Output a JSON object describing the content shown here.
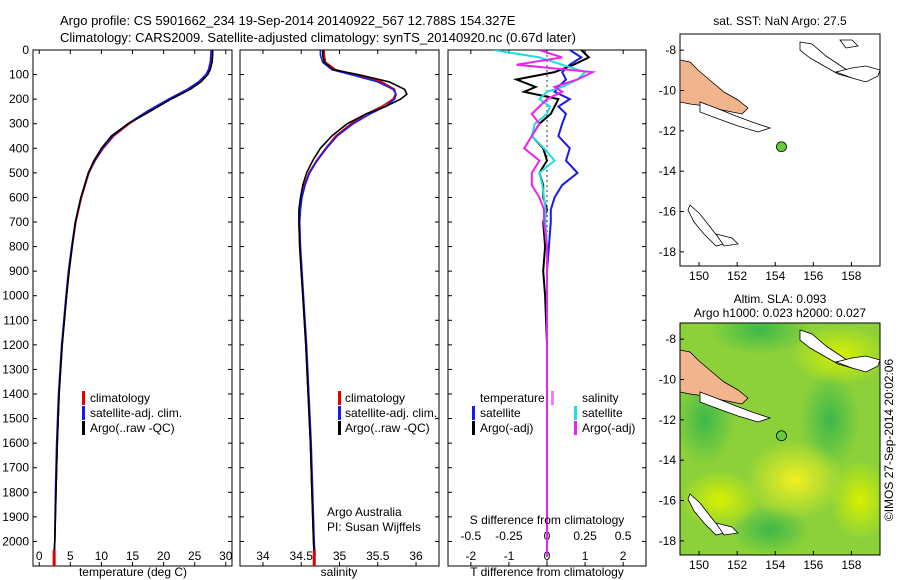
{
  "header": {
    "line1": "Argo profile: CS 5901662_234 19-Sep-2014 20140922_567 12.788S 154.327E",
    "line2": "Climatology: CARS2009. Satellite-adjusted climatology: synTS_20140920.nc (0.67d later)"
  },
  "colors": {
    "climatology": "#e00000",
    "satellite": "#1a1aee",
    "argo": "#000000",
    "salinity_satellite": "#22dddd",
    "salinity_argo": "#ee22ee",
    "land": "#f2b48c",
    "argo_marker": "#66cc33"
  },
  "chart_data": [
    {
      "type": "line",
      "name": "temperature-panel",
      "xlabel": "temperature (deg C)",
      "ylabel": "",
      "xlim": [
        -1,
        31
      ],
      "ylim": [
        2100,
        0
      ],
      "xticks": [
        0,
        5,
        10,
        15,
        20,
        25,
        30
      ],
      "yticks": [
        0,
        100,
        200,
        300,
        400,
        500,
        600,
        700,
        800,
        900,
        1000,
        1100,
        1200,
        1300,
        1400,
        1500,
        1600,
        1700,
        1800,
        1900,
        2000
      ],
      "depth": [
        0,
        20,
        50,
        80,
        100,
        130,
        160,
        200,
        250,
        300,
        350,
        400,
        450,
        500,
        600,
        700,
        800,
        900,
        1000,
        1200,
        1400,
        1600,
        1800,
        2000,
        2060
      ],
      "legend": [
        "climatology",
        "satellite-adj. clim.",
        "Argo(..raw -QC)"
      ],
      "series": [
        {
          "name": "climatology",
          "values": [
            27.8,
            27.8,
            27.7,
            27.4,
            27.0,
            25.8,
            24.0,
            21.0,
            17.5,
            14.5,
            12.0,
            10.3,
            9.0,
            8.0,
            6.8,
            5.9,
            5.3,
            4.8,
            4.4,
            3.7,
            3.2,
            2.9,
            2.7,
            2.5,
            2.4
          ]
        },
        {
          "name": "satellite-adj. clim.",
          "values": [
            27.6,
            27.6,
            27.5,
            27.2,
            26.8,
            25.6,
            23.8,
            20.8,
            17.3,
            14.3,
            11.8,
            10.2,
            8.9,
            7.9,
            6.7,
            5.8,
            5.2,
            4.7,
            4.3,
            3.6,
            3.1,
            2.8,
            2.6,
            2.5,
            2.4
          ]
        },
        {
          "name": "Argo(..raw -QC)",
          "values": [
            27.9,
            27.9,
            27.8,
            27.5,
            27.1,
            26.0,
            24.3,
            21.2,
            17.8,
            14.3,
            11.6,
            10.0,
            8.8,
            7.9,
            6.7,
            5.8,
            5.3,
            4.8,
            4.4,
            3.7,
            3.2,
            2.9,
            2.7,
            2.5,
            2.4
          ]
        }
      ]
    },
    {
      "type": "line",
      "name": "salinity-panel",
      "xlabel": "salinity",
      "xlim": [
        33.7,
        36.3
      ],
      "ylim": [
        2100,
        0
      ],
      "xticks": [
        34,
        34.5,
        35,
        35.5,
        36
      ],
      "depth": [
        0,
        20,
        50,
        80,
        100,
        130,
        160,
        180,
        200,
        230,
        260,
        300,
        350,
        400,
        450,
        500,
        550,
        600,
        650,
        700,
        800,
        900,
        1000,
        1200,
        1400,
        1600,
        1800,
        2000,
        2060
      ],
      "legend": [
        "climatology",
        "satellite-adj. clim.",
        "Argo(..raw -QC)"
      ],
      "annotations": [
        "Argo Australia",
        "PI: Susan Wijffels"
      ],
      "series": [
        {
          "name": "climatology",
          "values": [
            34.8,
            34.8,
            34.82,
            34.95,
            35.2,
            35.55,
            35.72,
            35.73,
            35.7,
            35.55,
            35.35,
            35.15,
            34.95,
            34.82,
            34.7,
            34.6,
            34.54,
            34.5,
            34.48,
            34.47,
            34.48,
            34.5,
            34.52,
            34.56,
            34.59,
            34.62,
            34.64,
            34.66,
            34.67
          ]
        },
        {
          "name": "satellite-adj. clim.",
          "values": [
            34.75,
            34.75,
            34.78,
            34.9,
            35.15,
            35.5,
            35.7,
            35.74,
            35.72,
            35.6,
            35.4,
            35.18,
            34.97,
            34.83,
            34.71,
            34.61,
            34.55,
            34.51,
            34.49,
            34.48,
            34.49,
            34.51,
            34.53,
            34.57,
            34.6,
            34.63,
            34.65,
            34.67,
            34.68
          ]
        },
        {
          "name": "Argo(..raw -QC)",
          "values": [
            34.78,
            34.78,
            34.8,
            34.92,
            35.25,
            35.65,
            35.85,
            35.88,
            35.8,
            35.6,
            35.35,
            35.1,
            34.9,
            34.75,
            34.65,
            34.57,
            34.52,
            34.49,
            34.47,
            34.47,
            34.48,
            34.5,
            34.52,
            34.56,
            34.59,
            34.62,
            34.64,
            34.66,
            34.67
          ]
        }
      ]
    },
    {
      "type": "line",
      "name": "difference-panel",
      "xlabel": "T difference from climatology",
      "xlabel_top": "S difference from climatology",
      "xlim": [
        -2.6,
        2.6
      ],
      "ylim": [
        2100,
        0
      ],
      "xticks": [
        -2,
        -1,
        0,
        1,
        2
      ],
      "xticks_s": [
        "-0.5",
        "-0.25",
        "0",
        "0.25",
        "0.5"
      ],
      "legend_t_title": "temperature",
      "legend_s_title": "salinity",
      "legend_t": [
        "satellite",
        "Argo(-adj)"
      ],
      "legend_s": [
        "satellite",
        "Argo(-adj)"
      ],
      "depth": [
        0,
        30,
        60,
        90,
        120,
        150,
        170,
        200,
        230,
        260,
        300,
        350,
        400,
        450,
        500,
        550,
        600,
        650,
        700,
        800,
        900,
        1000,
        1200,
        1400,
        1600,
        1800,
        2000,
        2060
      ],
      "series": [
        {
          "name": "temperature satellite",
          "values": [
            0.6,
            0.9,
            0.6,
            0.4,
            0.5,
            0.3,
            0.2,
            0.6,
            0.3,
            0.5,
            0.4,
            0.3,
            0.6,
            0.5,
            0.8,
            0.4,
            0.2,
            0.1,
            0.1,
            0.05,
            0.0,
            0.0,
            0.0,
            0.0,
            0.0,
            0.0,
            0.0,
            0.0
          ]
        },
        {
          "name": "temperature Argo(-adj)",
          "values": [
            0.9,
            1.1,
            0.7,
            0.2,
            -0.8,
            -0.3,
            -0.6,
            0.3,
            0.2,
            0.1,
            -0.2,
            -0.4,
            -0.1,
            0.0,
            -0.2,
            -0.1,
            -0.1,
            0.0,
            -0.1,
            -0.05,
            -0.1,
            -0.05,
            0.0,
            0.0,
            0.0,
            0.0,
            0.0,
            0.0
          ]
        },
        {
          "name": "salinity satellite",
          "values": [
            -0.35,
            -0.05,
            0.1,
            0.25,
            0.2,
            0.1,
            0.0,
            -0.05,
            0.02,
            0.0,
            -0.08,
            -0.1,
            -0.02,
            0.05,
            -0.05,
            -0.03,
            -0.02,
            -0.01,
            -0.01,
            0.0,
            0.0,
            0.0,
            0.0,
            0.0,
            0.0,
            0.0,
            0.0,
            0.0
          ]
        },
        {
          "name": "salinity Argo(-adj)",
          "values": [
            -0.05,
            0.1,
            -0.2,
            0.3,
            0.2,
            0.05,
            0.1,
            0.0,
            -0.05,
            -0.1,
            -0.05,
            -0.1,
            -0.15,
            -0.05,
            -0.1,
            -0.1,
            -0.05,
            -0.02,
            -0.02,
            0.0,
            0.0,
            0.0,
            0.0,
            0.0,
            0.0,
            0.0,
            0.0,
            0.0
          ]
        }
      ]
    },
    {
      "type": "scatter",
      "name": "sst-map",
      "title": "sat. SST: NaN Argo: 27.5",
      "xlim": [
        149,
        159.5
      ],
      "ylim": [
        -18.7,
        -7.2
      ],
      "xticks": [
        150,
        152,
        154,
        156,
        158
      ],
      "yticks": [
        -8,
        -10,
        -12,
        -14,
        -16,
        -18
      ],
      "argo_position": [
        154.327,
        -12.788
      ]
    },
    {
      "type": "heatmap",
      "name": "sla-map",
      "title_line1": "Altim. SLA: 0.093",
      "title_line2": "Argo h1000: 0.023 h2000: 0.027",
      "xlim": [
        149,
        159.5
      ],
      "ylim": [
        -18.7,
        -7.2
      ],
      "xticks": [
        150,
        152,
        154,
        156,
        158
      ],
      "yticks": [
        -8,
        -10,
        -12,
        -14,
        -16,
        -18
      ],
      "argo_position": [
        154.327,
        -12.788
      ],
      "side_label": "©IMOS 27-Sep-2014 20:02:06"
    }
  ]
}
